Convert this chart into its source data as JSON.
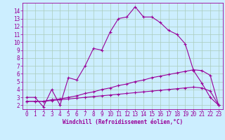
{
  "xlabel": "Windchill (Refroidissement éolien,°C)",
  "bg_color": "#cceeff",
  "line_color": "#990099",
  "grid_color": "#aaccbb",
  "xlim": [
    -0.5,
    23.5
  ],
  "ylim": [
    1.5,
    15.0
  ],
  "xticks": [
    0,
    1,
    2,
    3,
    4,
    5,
    6,
    7,
    8,
    9,
    10,
    11,
    12,
    13,
    14,
    15,
    16,
    17,
    18,
    19,
    20,
    21,
    22,
    23
  ],
  "yticks": [
    2,
    3,
    4,
    5,
    6,
    7,
    8,
    9,
    10,
    11,
    12,
    13,
    14
  ],
  "line1_x": [
    0,
    1,
    2,
    3,
    4,
    5,
    6,
    7,
    8,
    9,
    10,
    11,
    12,
    13,
    14,
    15,
    16,
    17,
    18,
    19,
    20,
    21,
    22,
    23
  ],
  "line1_y": [
    3.0,
    3.0,
    1.8,
    4.0,
    2.0,
    5.5,
    5.2,
    7.0,
    9.2,
    9.0,
    11.3,
    13.0,
    13.2,
    14.5,
    13.2,
    13.2,
    12.5,
    11.5,
    11.0,
    9.8,
    6.4,
    4.8,
    3.0,
    2.0
  ],
  "line2_x": [
    0,
    1,
    2,
    3,
    4,
    5,
    6,
    7,
    8,
    9,
    10,
    11,
    12,
    13,
    14,
    15,
    16,
    17,
    18,
    19,
    20,
    21,
    22,
    23
  ],
  "line2_y": [
    2.5,
    2.5,
    2.5,
    2.7,
    2.8,
    3.0,
    3.2,
    3.5,
    3.7,
    4.0,
    4.2,
    4.5,
    4.7,
    5.0,
    5.2,
    5.5,
    5.7,
    5.9,
    6.1,
    6.3,
    6.5,
    6.4,
    5.8,
    2.0
  ],
  "line3_x": [
    0,
    1,
    2,
    3,
    4,
    5,
    6,
    7,
    8,
    9,
    10,
    11,
    12,
    13,
    14,
    15,
    16,
    17,
    18,
    19,
    20,
    21,
    22,
    23
  ],
  "line3_y": [
    2.5,
    2.5,
    2.5,
    2.6,
    2.7,
    2.8,
    2.9,
    3.0,
    3.1,
    3.2,
    3.3,
    3.4,
    3.5,
    3.6,
    3.7,
    3.8,
    3.9,
    4.0,
    4.1,
    4.2,
    4.3,
    4.2,
    3.8,
    2.0
  ],
  "tick_fontsize": 5.5,
  "xlabel_fontsize": 5.5
}
